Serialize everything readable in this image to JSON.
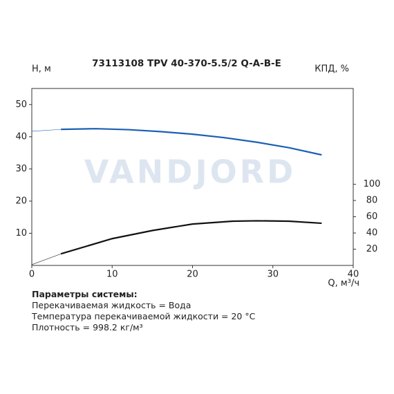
{
  "chart_data": {
    "type": "line",
    "title": "73113108 TPV 40-370-5.5/2 Q-A-B-E",
    "watermark": "VANDJORD",
    "ylabel": "H, м",
    "y2label": "КПД, %",
    "xlabel": "Q, м³/ч",
    "xlim": [
      0,
      40
    ],
    "xticks": [
      0,
      10,
      20,
      30,
      40
    ],
    "ylim": [
      0,
      55
    ],
    "yticks": [
      10,
      20,
      30,
      40,
      50
    ],
    "y2lim": [
      0,
      218
    ],
    "y2ticks": [
      20,
      40,
      60,
      80,
      100
    ],
    "series": [
      {
        "color": "#1a5fb4",
        "width": 0.6,
        "x": [
          0,
          3.7
        ],
        "values": [
          41.7,
          42.3
        ]
      },
      {
        "color": "#1a5fb4",
        "width": 2.2,
        "x": [
          3.7,
          8,
          12,
          16,
          20,
          24,
          28,
          32,
          36
        ],
        "values": [
          42.3,
          42.5,
          42.2,
          41.6,
          40.8,
          39.7,
          38.3,
          36.6,
          34.4
        ]
      },
      {
        "color": "#111111",
        "width": 0.6,
        "axis": "y2",
        "x": [
          0,
          3.7
        ],
        "values": [
          1,
          14.5
        ]
      },
      {
        "color": "#111111",
        "width": 2.2,
        "axis": "y2",
        "x": [
          3.7,
          10,
          15,
          20,
          25,
          28,
          32,
          36
        ],
        "values": [
          14.5,
          33,
          43,
          51,
          54.5,
          55,
          54.5,
          52
        ]
      }
    ]
  },
  "parameters": {
    "title": "Параметры системы:",
    "lines": [
      "Перекачиваемая жидкость = Вода",
      "Температура перекачиваемой жидкости = 20 °C",
      "Плотность = 998.2 кг/м³"
    ]
  }
}
